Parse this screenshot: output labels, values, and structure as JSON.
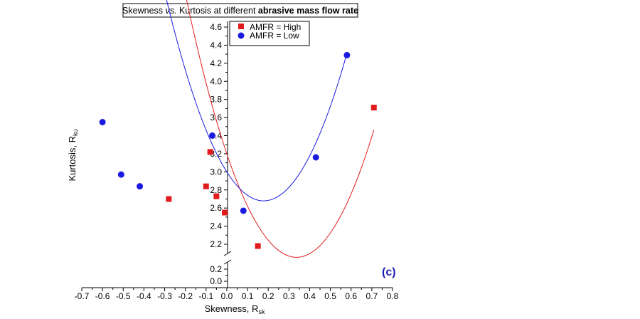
{
  "chart_data": {
    "type": "scatter",
    "title": {
      "part1": "Skewness ",
      "part2": "vs.",
      "part3": " Kurtosis at different ",
      "part4": "abrasive mass flow rate"
    },
    "xlabel": {
      "main": "Skewness, R",
      "sub": "sk"
    },
    "ylabel": {
      "main": "Kurtosis, R",
      "sub": "ku"
    },
    "panel_label": "(c)",
    "xlim": [
      -0.7,
      0.8
    ],
    "ylim_upper": [
      2.1,
      4.7
    ],
    "ylim_lower": [
      0.0,
      0.3
    ],
    "axis_break": true,
    "legend_position": "top-left",
    "x_ticks": [
      "-0.7",
      "-0.6",
      "-0.5",
      "-0.4",
      "-0.3",
      "-0.2",
      "-0.1",
      "0.0",
      "0.1",
      "0.2",
      "0.3",
      "0.4",
      "0.5",
      "0.6",
      "0.7",
      "0.8"
    ],
    "y_ticks_upper": [
      "2.2",
      "2.4",
      "2.6",
      "2.8",
      "3.0",
      "3.2",
      "3.4",
      "3.6",
      "3.8",
      "4.0",
      "4.2",
      "4.4",
      "4.6"
    ],
    "y_ticks_lower": [
      "0.0",
      "0.2"
    ],
    "series": [
      {
        "name": "AMFR = High",
        "marker": "square",
        "color": "#e11b1b",
        "x": [
          -0.28,
          -0.1,
          -0.08,
          -0.05,
          -0.01,
          0.15,
          0.71
        ],
        "y": [
          2.7,
          2.84,
          3.22,
          2.73,
          2.55,
          2.18,
          3.71
        ],
        "fit": [
          10.1,
          -6.8,
          3.2
        ]
      },
      {
        "name": "AMFR = Low",
        "marker": "circle",
        "color": "#1a1ae0",
        "x": [
          -0.6,
          -0.51,
          -0.42,
          -0.07,
          0.08,
          0.43,
          0.58
        ],
        "y": [
          3.55,
          2.97,
          2.84,
          3.4,
          2.57,
          3.16,
          4.29
        ],
        "fit": [
          10.1,
          -3.6,
          3.0
        ]
      }
    ]
  }
}
